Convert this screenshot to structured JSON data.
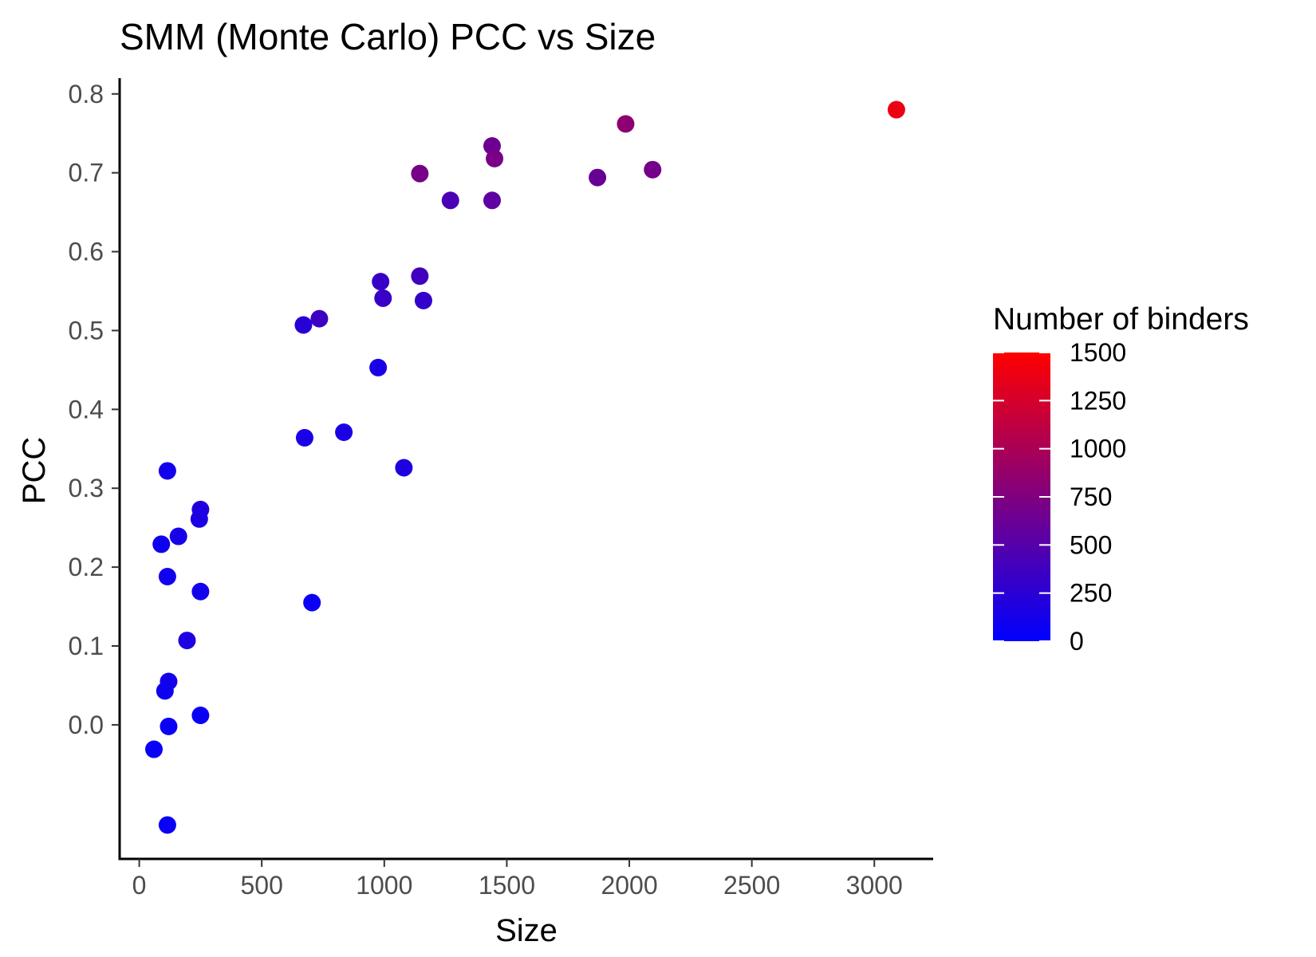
{
  "chart_data": {
    "type": "scatter",
    "title": "SMM (Monte Carlo) PCC vs Size",
    "xlabel": "Size",
    "ylabel": "PCC",
    "xlim": [
      -80,
      3240
    ],
    "ylim": [
      -0.17,
      0.82
    ],
    "x_ticks": [
      0,
      500,
      1000,
      1500,
      2000,
      2500,
      3000
    ],
    "x_tick_labels": [
      "0",
      "500",
      "1000",
      "1500",
      "2000",
      "2500",
      "3000"
    ],
    "y_ticks": [
      0.0,
      0.1,
      0.2,
      0.3,
      0.4,
      0.5,
      0.6,
      0.7,
      0.8
    ],
    "y_tick_labels": [
      "0.0",
      "0.1",
      "0.2",
      "0.3",
      "0.4",
      "0.5",
      "0.6",
      "0.7",
      "0.8"
    ],
    "grid": false,
    "legend": {
      "title": "Number of binders",
      "placement": "right",
      "type": "continuous-colorbar",
      "min": 0,
      "max": 1500,
      "ticks": [
        0,
        250,
        500,
        750,
        1000,
        1250,
        1500
      ],
      "tick_labels": [
        "0",
        "250",
        "500",
        "750",
        "1000",
        "1250",
        "1500"
      ],
      "low_color": "#0000ff",
      "high_color": "#ff0000"
    },
    "points": [
      {
        "x": 3090,
        "y": 0.78,
        "binders": 1380
      },
      {
        "x": 1985,
        "y": 0.762,
        "binders": 830
      },
      {
        "x": 2095,
        "y": 0.704,
        "binders": 690
      },
      {
        "x": 1870,
        "y": 0.694,
        "binders": 620
      },
      {
        "x": 1440,
        "y": 0.734,
        "binders": 640
      },
      {
        "x": 1450,
        "y": 0.718,
        "binders": 720
      },
      {
        "x": 1145,
        "y": 0.699,
        "binders": 700
      },
      {
        "x": 1270,
        "y": 0.665,
        "binders": 430
      },
      {
        "x": 1440,
        "y": 0.665,
        "binders": 560
      },
      {
        "x": 1145,
        "y": 0.569,
        "binders": 380
      },
      {
        "x": 985,
        "y": 0.562,
        "binders": 330
      },
      {
        "x": 995,
        "y": 0.541,
        "binders": 330
      },
      {
        "x": 1160,
        "y": 0.538,
        "binders": 300
      },
      {
        "x": 735,
        "y": 0.515,
        "binders": 360
      },
      {
        "x": 670,
        "y": 0.507,
        "binders": 230
      },
      {
        "x": 975,
        "y": 0.453,
        "binders": 150
      },
      {
        "x": 835,
        "y": 0.371,
        "binders": 160
      },
      {
        "x": 675,
        "y": 0.364,
        "binders": 150
      },
      {
        "x": 1080,
        "y": 0.326,
        "binders": 180
      },
      {
        "x": 115,
        "y": 0.322,
        "binders": 110
      },
      {
        "x": 250,
        "y": 0.273,
        "binders": 200
      },
      {
        "x": 245,
        "y": 0.261,
        "binders": 160
      },
      {
        "x": 160,
        "y": 0.239,
        "binders": 140
      },
      {
        "x": 90,
        "y": 0.229,
        "binders": 90
      },
      {
        "x": 115,
        "y": 0.188,
        "binders": 100
      },
      {
        "x": 250,
        "y": 0.169,
        "binders": 110
      },
      {
        "x": 705,
        "y": 0.155,
        "binders": 70
      },
      {
        "x": 195,
        "y": 0.107,
        "binders": 170
      },
      {
        "x": 120,
        "y": 0.055,
        "binders": 120
      },
      {
        "x": 105,
        "y": 0.043,
        "binders": 80
      },
      {
        "x": 250,
        "y": 0.012,
        "binders": 60
      },
      {
        "x": 120,
        "y": -0.002,
        "binders": 60
      },
      {
        "x": 60,
        "y": -0.031,
        "binders": 50
      },
      {
        "x": 115,
        "y": -0.127,
        "binders": 50
      }
    ]
  }
}
